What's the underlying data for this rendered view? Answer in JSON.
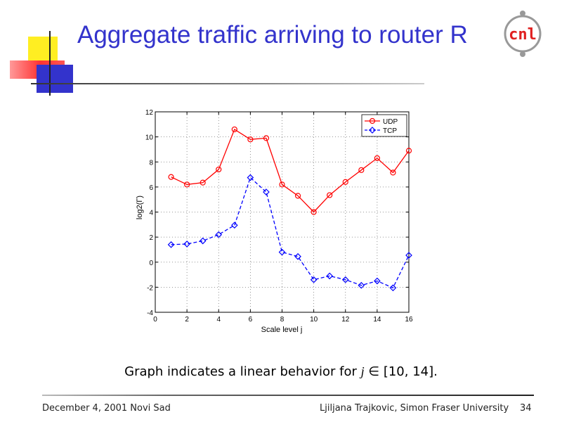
{
  "slide": {
    "title": "Aggregate traffic arriving to router R",
    "caption_prefix": "Graph indicates a linear behavior for",
    "caption_var": "j",
    "caption_symbol": "∈",
    "caption_range": "[10, 14].",
    "footer_date": "December 4, 2001  Novi Sad",
    "footer_author": "Ljiljana Trajkovic, Simon Fraser University",
    "page_number": "34",
    "logo_text": "cnl",
    "logo_icon": "cnl-logo-icon",
    "colors": {
      "title": "#3333cc",
      "logo": "#e02020"
    }
  },
  "chart_data": {
    "type": "line",
    "xlabel": "Scale level j",
    "ylabel": "log2(Γ)",
    "xlim": [
      0,
      16
    ],
    "ylim": [
      -4,
      12
    ],
    "xticks": [
      0,
      2,
      4,
      6,
      8,
      10,
      12,
      14,
      16
    ],
    "yticks": [
      -4,
      -2,
      0,
      2,
      4,
      6,
      8,
      10,
      12
    ],
    "grid": true,
    "legend_position": "top-right",
    "x": [
      1,
      2,
      3,
      4,
      5,
      6,
      7,
      8,
      9,
      10,
      11,
      12,
      13,
      14,
      15,
      16
    ],
    "series": [
      {
        "name": "UDP",
        "color": "#ff0000",
        "marker": "circle",
        "line": "solid",
        "values": [
          6.8,
          6.2,
          6.35,
          7.4,
          10.6,
          9.8,
          9.9,
          6.2,
          5.3,
          4.0,
          5.35,
          6.4,
          7.35,
          8.3,
          7.15,
          8.9
        ]
      },
      {
        "name": "TCP",
        "color": "#0000ff",
        "marker": "diamond",
        "line": "dashed",
        "values": [
          1.4,
          1.45,
          1.7,
          2.2,
          2.95,
          6.75,
          5.6,
          0.8,
          0.45,
          -1.4,
          -1.1,
          -1.4,
          -1.85,
          -1.5,
          -2.05,
          0.55
        ]
      }
    ]
  }
}
